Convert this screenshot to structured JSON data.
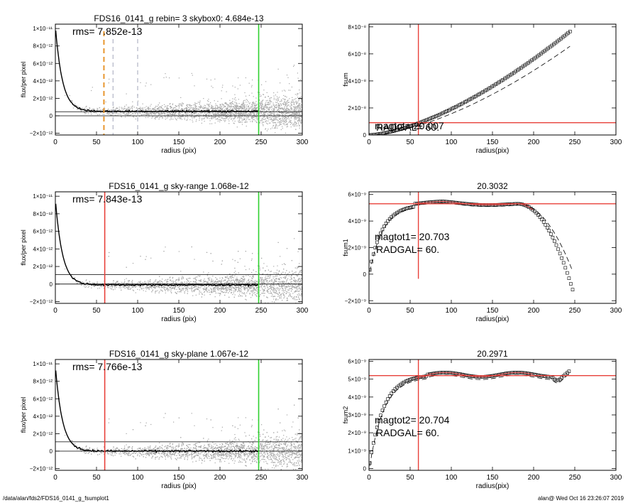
{
  "footer": {
    "path": "/data/alan/fds2/FDS16_0141_g_fsumplot1",
    "stamp": "alan@  Wed Oct 16 23:26:07 2019"
  },
  "colors": {
    "scatter": "#a6a6a6",
    "profile": "#000000",
    "radius_marker": "#e8403a",
    "sky_marker": "#2ed12e",
    "aperture_marker": "#e8962e",
    "guide_dash": "#8a8fa8",
    "model_curve": "#c43030"
  },
  "chart_data": [
    {
      "id": "profile-skybox",
      "type": "scatter",
      "title": "FDS16_0141_g rebin= 3    skybox0:  4.684e-13",
      "xlabel": "radius (pix)",
      "ylabel": "flux/per pixel",
      "xlim": [
        0,
        300
      ],
      "ylim": [
        -2.2e-12,
        1.05e-11
      ],
      "xticks": [
        0,
        50,
        100,
        150,
        200,
        250,
        300
      ],
      "xtick_labels": [
        "0",
        "50",
        "100",
        "150",
        "200",
        "250",
        "300"
      ],
      "yticks": [
        -2e-12,
        0,
        2e-12,
        4e-12,
        6e-12,
        8e-12,
        1e-11
      ],
      "ytick_labels": [
        "−2×10⁻¹²",
        "0",
        "2×10⁻¹²",
        "4×10⁻¹²",
        "6×10⁻¹²",
        "8×10⁻¹²",
        "1×10⁻¹¹"
      ],
      "annotations": [
        "rms= 7.852e-13"
      ],
      "profile": {
        "amp": 9.8e-12,
        "scale": 8.5,
        "offset": 5.2e-13
      },
      "horizontal_lines": [
        0,
        4.684e-13
      ],
      "marker_lines": [
        {
          "x": 59,
          "style": "dash-orange"
        },
        {
          "x": 70,
          "style": "dash-gray"
        },
        {
          "x": 100,
          "style": "dash-gray"
        },
        {
          "x": 247,
          "style": "sky-green"
        }
      ]
    },
    {
      "id": "fsum",
      "type": "scatter",
      "title": "",
      "xlabel": "radius(pix)",
      "ylabel": "fsum",
      "xlim": [
        0,
        300
      ],
      "ylim": [
        0,
        8.2e-08
      ],
      "xticks": [
        0,
        50,
        100,
        150,
        200,
        250,
        300
      ],
      "xtick_labels": [
        "0",
        "50",
        "100",
        "150",
        "200",
        "250",
        "300"
      ],
      "yticks": [
        0,
        2e-08,
        4e-08,
        6e-08,
        8e-08
      ],
      "ytick_labels": [
        "0",
        "2×10⁻⁸",
        "4×10⁻⁸",
        "6×10⁻⁸",
        "8×10⁻⁸"
      ],
      "annotations": [
        "magtot=  20.007",
        "RADGAL=     60."
      ],
      "hline": 9.1e-09,
      "vline": 60,
      "curve_end": {
        "x": 245,
        "y": 7.7e-08
      },
      "dashed_end": {
        "x": 245,
        "y": 6.6e-08
      }
    },
    {
      "id": "profile-skyrange",
      "type": "scatter",
      "title": "FDS16_0141_g sky-range  1.068e-12",
      "xlabel": "radius (pix)",
      "ylabel": "flux/per pixel",
      "xlim": [
        0,
        300
      ],
      "ylim": [
        -2.2e-12,
        1.05e-11
      ],
      "xticks": [
        0,
        50,
        100,
        150,
        200,
        250,
        300
      ],
      "xtick_labels": [
        "0",
        "50",
        "100",
        "150",
        "200",
        "250",
        "300"
      ],
      "yticks": [
        -2e-12,
        0,
        2e-12,
        4e-12,
        6e-12,
        8e-12,
        1e-11
      ],
      "ytick_labels": [
        "−2×10⁻¹²",
        "0",
        "2×10⁻¹²",
        "4×10⁻¹²",
        "6×10⁻¹²",
        "8×10⁻¹²",
        "1×10⁻¹¹"
      ],
      "annotations": [
        "rms= 7.843e-13"
      ],
      "profile": {
        "amp": 9.8e-12,
        "scale": 8.5,
        "offset": -1e-13
      },
      "horizontal_lines": [
        0,
        1.068e-12
      ],
      "marker_lines": [
        {
          "x": 60,
          "style": "radius-red"
        },
        {
          "x": 247,
          "style": "sky-green"
        }
      ]
    },
    {
      "id": "fsum1",
      "type": "scatter",
      "title": "20.3032",
      "xlabel": "radius(pix)",
      "ylabel": "fsum1",
      "xlim": [
        0,
        300
      ],
      "ylim": [
        -2.2e-09,
        6.2e-09
      ],
      "xticks": [
        0,
        50,
        100,
        150,
        200,
        250,
        300
      ],
      "xtick_labels": [
        "0",
        "50",
        "100",
        "150",
        "200",
        "250",
        "300"
      ],
      "yticks": [
        -2e-09,
        0,
        2e-09,
        4e-09,
        6e-09
      ],
      "ytick_labels": [
        "−2×10⁻⁹",
        "0",
        "2×10⁻⁹",
        "4×10⁻⁹",
        "6×10⁻⁹"
      ],
      "annotations": [
        "magtot1=  20.703",
        "RADGAL=     60."
      ],
      "hline": 5.3e-09,
      "vline": 60,
      "shape": "drop",
      "plateau": 5.3e-09
    },
    {
      "id": "profile-skyplane",
      "type": "scatter",
      "title": "FDS16_0141_g sky-plane  1.067e-12",
      "xlabel": "radius (pix)",
      "ylabel": "flux/per pixel",
      "xlim": [
        0,
        300
      ],
      "ylim": [
        -2.2e-12,
        1.05e-11
      ],
      "xticks": [
        0,
        50,
        100,
        150,
        200,
        250,
        300
      ],
      "xtick_labels": [
        "0",
        "50",
        "100",
        "150",
        "200",
        "250",
        "300"
      ],
      "yticks": [
        -2e-12,
        0,
        2e-12,
        4e-12,
        6e-12,
        8e-12,
        1e-11
      ],
      "ytick_labels": [
        "−2×10⁻¹²",
        "0",
        "2×10⁻¹²",
        "4×10⁻¹²",
        "6×10⁻¹²",
        "8×10⁻¹²",
        "1×10⁻¹¹"
      ],
      "annotations": [
        "rms= 7.766e-13"
      ],
      "profile": {
        "amp": 9.8e-12,
        "scale": 8.5,
        "offset": 0
      },
      "horizontal_lines": [
        0,
        1.067e-12
      ],
      "marker_lines": [
        {
          "x": 60,
          "style": "radius-red"
        },
        {
          "x": 247,
          "style": "sky-green"
        }
      ]
    },
    {
      "id": "fsum2",
      "type": "scatter",
      "title": "20.2971",
      "xlabel": "radius(pix)",
      "ylabel": "fsum2",
      "xlim": [
        0,
        300
      ],
      "ylim": [
        -1e-10,
        6.1e-09
      ],
      "xticks": [
        0,
        50,
        100,
        150,
        200,
        250,
        300
      ],
      "xtick_labels": [
        "0",
        "50",
        "100",
        "150",
        "200",
        "250",
        "300"
      ],
      "yticks": [
        0,
        1e-09,
        2e-09,
        3e-09,
        4e-09,
        5e-09,
        6e-09
      ],
      "ytick_labels": [
        "0",
        "1×10⁻⁹",
        "2×10⁻⁹",
        "3×10⁻⁹",
        "4×10⁻⁹",
        "5×10⁻⁹",
        "6×10⁻⁹"
      ],
      "annotations": [
        "magtot2=  20.704",
        "RADGAL=     60."
      ],
      "hline": 5.2e-09,
      "vline": 60,
      "shape": "rise",
      "plateau": 5.25e-09
    }
  ]
}
